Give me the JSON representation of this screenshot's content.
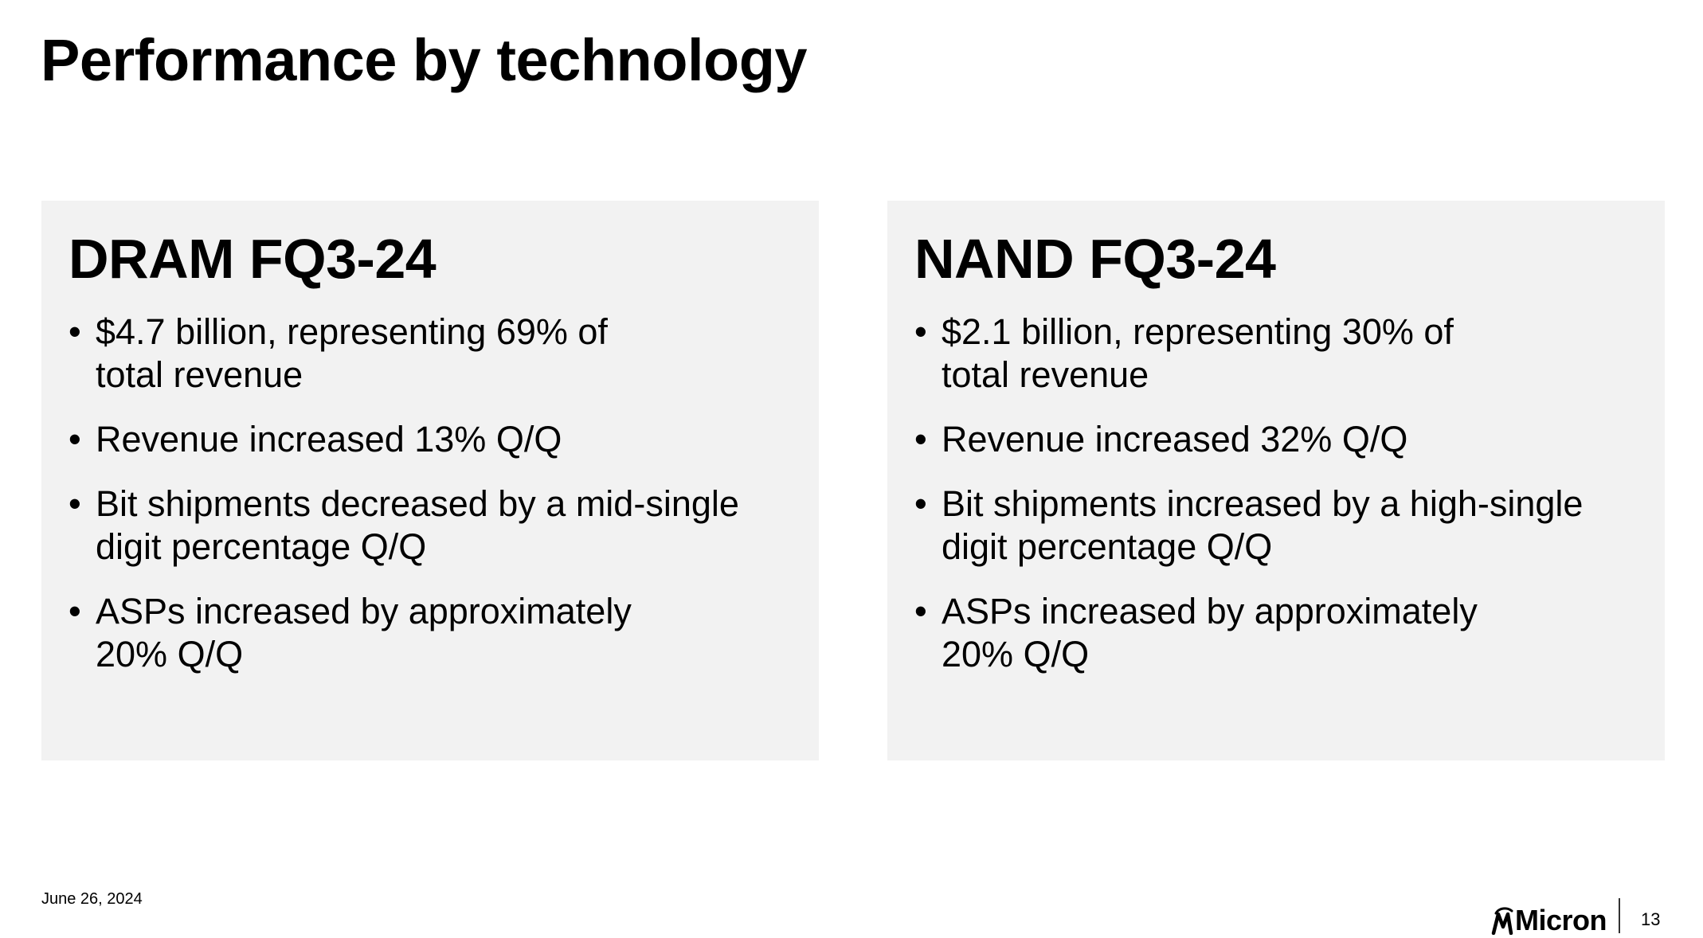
{
  "slide": {
    "title": "Performance by technology",
    "footer": {
      "date": "June 26, 2024",
      "logo_text": "Micron",
      "page_number": "13"
    }
  },
  "panels": [
    {
      "heading": "DRAM FQ3-24",
      "bullets": [
        "$4.7 billion, representing 69% of\ntotal revenue",
        "Revenue increased 13% Q/Q",
        "Bit shipments decreased by a mid-single\ndigit percentage Q/Q",
        "ASPs increased by approximately\n20% Q/Q"
      ]
    },
    {
      "heading": "NAND FQ3-24",
      "bullets": [
        "$2.1 billion, representing 30% of\ntotal revenue",
        "Revenue increased 32% Q/Q",
        "Bit shipments increased by a high-single\ndigit percentage Q/Q",
        "ASPs increased by approximately\n20% Q/Q"
      ]
    }
  ],
  "icons": {
    "logo": "micron-logo-icon"
  },
  "colors": {
    "panel_background": "#f2f2f2",
    "text": "#000000"
  }
}
